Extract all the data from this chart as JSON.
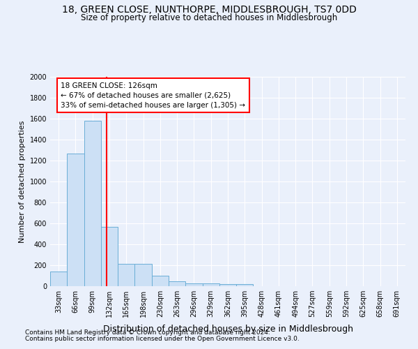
{
  "title": "18, GREEN CLOSE, NUNTHORPE, MIDDLESBROUGH, TS7 0DD",
  "subtitle": "Size of property relative to detached houses in Middlesbrough",
  "xlabel": "Distribution of detached houses by size in Middlesbrough",
  "ylabel": "Number of detached properties",
  "footnote1": "Contains HM Land Registry data © Crown copyright and database right 2024.",
  "footnote2": "Contains public sector information licensed under the Open Government Licence v3.0.",
  "bin_labels": [
    "33sqm",
    "66sqm",
    "99sqm",
    "132sqm",
    "165sqm",
    "198sqm",
    "230sqm",
    "263sqm",
    "296sqm",
    "329sqm",
    "362sqm",
    "395sqm",
    "428sqm",
    "461sqm",
    "494sqm",
    "527sqm",
    "559sqm",
    "592sqm",
    "625sqm",
    "658sqm",
    "691sqm"
  ],
  "bar_values": [
    140,
    1270,
    1580,
    570,
    215,
    215,
    100,
    50,
    30,
    25,
    20,
    20,
    0,
    0,
    0,
    0,
    0,
    0,
    0,
    0,
    0
  ],
  "bar_color": "#cce0f5",
  "bar_edge_color": "#6aaed6",
  "property_line_label": "18 GREEN CLOSE: 126sqm",
  "annotation_line1": "← 67% of detached houses are smaller (2,625)",
  "annotation_line2": "33% of semi-detached houses are larger (1,305) →",
  "annotation_box_color": "white",
  "annotation_box_edge": "red",
  "vline_color": "red",
  "prop_bin_index": 2.818,
  "ylim": [
    0,
    2000
  ],
  "yticks": [
    0,
    200,
    400,
    600,
    800,
    1000,
    1200,
    1400,
    1600,
    1800,
    2000
  ],
  "background_color": "#eaf0fb",
  "grid_color": "white",
  "title_fontsize": 10,
  "subtitle_fontsize": 8.5,
  "ylabel_fontsize": 8,
  "xlabel_fontsize": 9,
  "tick_fontsize": 7,
  "footnote_fontsize": 6.5
}
